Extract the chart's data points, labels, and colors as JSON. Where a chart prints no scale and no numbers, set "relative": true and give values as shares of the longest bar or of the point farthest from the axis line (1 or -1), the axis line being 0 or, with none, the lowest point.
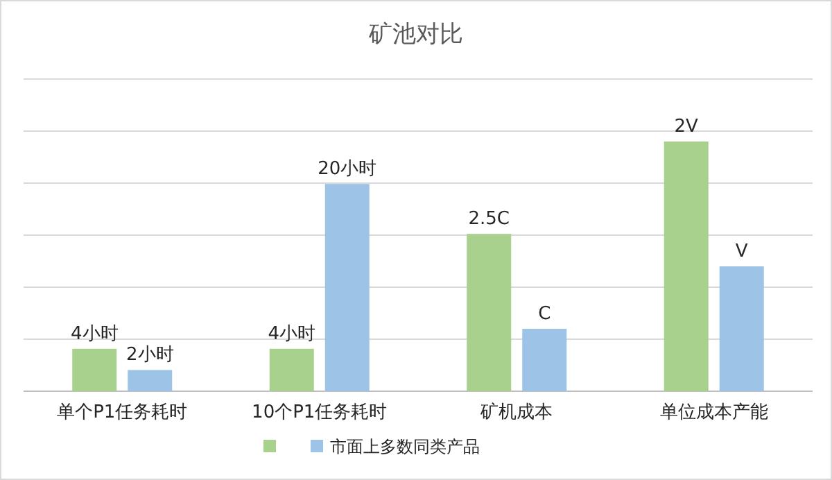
{
  "chart_data": {
    "type": "bar",
    "title": "矿池对比",
    "relative": true,
    "grid": "y",
    "legend": "bottom",
    "categories": [
      "单个P1任务耗时",
      "10个P1任务耗时",
      "矿机成本",
      "单位成本产能"
    ],
    "series": [
      {
        "color": "#a9d18e",
        "values": [
          0.17,
          0.17,
          0.63,
          1
        ]
      },
      {
        "name": "市面上多数同类产品",
        "color": "#9dc3e6",
        "values": [
          0.085,
          0.83,
          0.25,
          0.5
        ]
      }
    ],
    "annotations": [
      {
        "text": "4小时",
        "x": "单个P1任务耗时",
        "y": 0.17
      },
      {
        "text": "2小时",
        "x": "单个P1任务耗时",
        "y": 0.085
      },
      {
        "text": "4小时",
        "x": "10个P1任务耗时",
        "y": 0.17
      },
      {
        "text": "20小时",
        "x": "10个P1任务耗时",
        "y": 0.83
      },
      {
        "text": "2.5C",
        "x": "矿机成本",
        "y": 0.63
      },
      {
        "text": "C",
        "x": "矿机成本",
        "y": 0.25
      },
      {
        "text": "2V",
        "x": "单位成本产能",
        "y": 1
      },
      {
        "text": "V",
        "x": "单位成本产能",
        "y": 0.5
      }
    ]
  }
}
